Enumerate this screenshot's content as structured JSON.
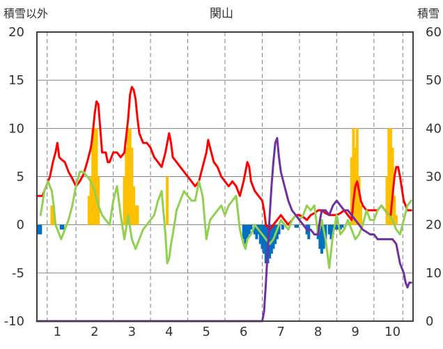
{
  "chart_data": {
    "type": "line",
    "title": "関山",
    "left_axis_label": "積雪以外",
    "right_axis_label": "積雪",
    "ylim_left": [
      -10,
      20
    ],
    "yticks_left": [
      20,
      15,
      10,
      5,
      0,
      -5,
      -10
    ],
    "ylim_right": [
      0,
      60
    ],
    "yticks_right": [
      60,
      50,
      40,
      30,
      20,
      10,
      0
    ],
    "xlim": [
      0.45,
      10.55
    ],
    "xticks": [
      1,
      2,
      3,
      4,
      5,
      6,
      7,
      8,
      9,
      10
    ],
    "grid": true,
    "colors": {
      "red_line": "#ff0000",
      "green_line": "#92d050",
      "purple_line": "#7030a0",
      "orange_bar": "#ffc000",
      "blue_bar": "#0070c0",
      "grid": "#808080",
      "axis": "#404040"
    },
    "series": [
      {
        "type": "line",
        "axis": "left",
        "color": "#ff0000",
        "x": [
          0.45,
          0.6,
          0.75,
          0.8,
          0.88,
          0.95,
          1.0,
          1.05,
          1.1,
          1.2,
          1.3,
          1.4,
          1.5,
          1.6,
          1.7,
          1.8,
          1.9,
          1.95,
          2.0,
          2.05,
          2.1,
          2.15,
          2.2,
          2.3,
          2.35,
          2.4,
          2.5,
          2.6,
          2.7,
          2.8,
          2.9,
          2.95,
          3.0,
          3.05,
          3.1,
          3.15,
          3.2,
          3.3,
          3.4,
          3.5,
          3.6,
          3.7,
          3.8,
          3.9,
          3.95,
          4.0,
          4.05,
          4.1,
          4.2,
          4.3,
          4.4,
          4.5,
          4.6,
          4.7,
          4.8,
          4.9,
          5.0,
          5.05,
          5.1,
          5.2,
          5.3,
          5.4,
          5.5,
          5.6,
          5.7,
          5.8,
          5.85,
          5.9,
          6.0,
          6.05,
          6.1,
          6.15,
          6.2,
          6.3,
          6.4,
          6.5,
          6.55,
          6.6,
          6.7,
          6.8,
          6.9,
          7.0,
          7.1,
          7.2,
          7.3,
          7.4,
          7.5,
          7.6,
          7.7,
          7.8,
          7.9,
          8.0,
          8.1,
          8.2,
          8.3,
          8.4,
          8.5,
          8.6,
          8.7,
          8.8,
          8.9,
          8.95,
          9.0,
          9.05,
          9.1,
          9.15,
          9.2,
          9.3,
          9.4,
          9.5,
          9.6,
          9.7,
          9.8,
          9.9,
          9.95,
          10.0,
          10.05,
          10.1,
          10.15,
          10.2,
          10.3,
          10.4,
          10.5
        ],
        "y": [
          3.0,
          3.0,
          4.5,
          5.0,
          6.5,
          7.5,
          8.5,
          7.0,
          6.8,
          6.5,
          5.5,
          4.8,
          4.0,
          4.5,
          5.2,
          6.5,
          8.0,
          9.5,
          11.5,
          12.8,
          12.5,
          10.0,
          7.5,
          7.5,
          6.5,
          6.5,
          7.5,
          7.5,
          7.0,
          7.5,
          11.0,
          13.5,
          14.3,
          14.0,
          13.0,
          11.0,
          9.5,
          8.5,
          8.5,
          8.0,
          7.0,
          6.5,
          6.0,
          7.5,
          8.5,
          9.5,
          8.5,
          7.0,
          6.5,
          6.0,
          5.5,
          5.0,
          4.5,
          4.0,
          4.5,
          6.0,
          7.5,
          8.8,
          8.0,
          6.5,
          6.0,
          5.0,
          4.5,
          4.0,
          4.5,
          4.0,
          3.5,
          3.0,
          4.5,
          5.5,
          6.5,
          6.0,
          4.5,
          3.5,
          3.0,
          2.5,
          1.5,
          0.0,
          -0.5,
          0.0,
          0.5,
          1.0,
          0.5,
          0.0,
          0.5,
          1.0,
          1.0,
          0.8,
          0.5,
          1.0,
          1.2,
          1.5,
          1.5,
          1.2,
          1.0,
          1.0,
          1.0,
          1.2,
          1.5,
          1.0,
          0.5,
          2.5,
          4.0,
          4.5,
          3.5,
          2.5,
          2.0,
          1.5,
          1.5,
          1.5,
          1.5,
          2.0,
          1.5,
          1.0,
          1.0,
          3.0,
          5.0,
          6.0,
          6.0,
          5.0,
          2.5,
          1.5,
          1.5
        ]
      },
      {
        "type": "line",
        "axis": "left",
        "color": "#92d050",
        "x": [
          0.55,
          0.65,
          0.75,
          0.85,
          0.9,
          0.95,
          1.0,
          1.05,
          1.1,
          1.15,
          1.2,
          1.3,
          1.4,
          1.5,
          1.6,
          1.7,
          1.8,
          1.9,
          2.0,
          2.1,
          2.2,
          2.3,
          2.4,
          2.5,
          2.6,
          2.7,
          2.8,
          2.9,
          3.0,
          3.1,
          3.2,
          3.3,
          3.4,
          3.5,
          3.6,
          3.7,
          3.8,
          3.9,
          3.95,
          4.0,
          4.05,
          4.1,
          4.2,
          4.3,
          4.4,
          4.5,
          4.6,
          4.7,
          4.8,
          4.9,
          5.0,
          5.1,
          5.2,
          5.3,
          5.4,
          5.5,
          5.6,
          5.7,
          5.8,
          5.9,
          6.0,
          6.05,
          6.1,
          6.2,
          6.3,
          6.4,
          6.5,
          6.6,
          6.7,
          6.8,
          6.9,
          7.0,
          7.1,
          7.2,
          7.3,
          7.4,
          7.5,
          7.6,
          7.7,
          7.8,
          7.9,
          8.0,
          8.1,
          8.2,
          8.3,
          8.4,
          8.5,
          8.6,
          8.7,
          8.8,
          8.9,
          9.0,
          9.1,
          9.2,
          9.3,
          9.4,
          9.5,
          9.6,
          9.7,
          9.8,
          9.9,
          10.0,
          10.1,
          10.2,
          10.3,
          10.4,
          10.5
        ],
        "y": [
          1.0,
          3.5,
          4.5,
          3.5,
          2.0,
          0.0,
          -0.5,
          -1.0,
          -1.5,
          -1.0,
          -0.5,
          0.5,
          2.0,
          4.0,
          5.5,
          5.5,
          5.0,
          4.5,
          3.5,
          2.0,
          1.0,
          0.5,
          0.0,
          2.5,
          4.0,
          1.0,
          -1.5,
          1.0,
          -1.5,
          -2.5,
          -1.5,
          -0.5,
          0.0,
          0.5,
          1.0,
          2.5,
          3.5,
          -1.0,
          -4.0,
          -3.5,
          -2.0,
          -1.0,
          1.5,
          2.5,
          3.5,
          3.0,
          2.5,
          2.5,
          4.5,
          3.0,
          -1.5,
          0.5,
          1.0,
          1.5,
          2.0,
          1.0,
          2.0,
          2.5,
          3.0,
          -0.5,
          -2.0,
          -2.5,
          -1.5,
          -1.0,
          0.0,
          -0.5,
          -1.0,
          -1.5,
          -2.0,
          -1.5,
          -0.5,
          0.5,
          0.0,
          -0.5,
          0.5,
          1.0,
          0.5,
          1.0,
          2.0,
          1.5,
          2.0,
          -1.0,
          0.5,
          -1.5,
          -4.5,
          -1.0,
          1.0,
          -1.0,
          -0.5,
          0.5,
          -0.5,
          -1.5,
          -1.0,
          0.0,
          1.5,
          0.5,
          0.5,
          1.5,
          2.0,
          1.5,
          1.0,
          0.5,
          -0.5,
          -1.0,
          0.5,
          2.0,
          2.5
        ]
      },
      {
        "type": "line",
        "axis": "right",
        "color": "#7030a0",
        "x": [
          0.45,
          1.0,
          2.0,
          3.0,
          4.0,
          5.0,
          6.0,
          6.5,
          6.55,
          6.6,
          6.65,
          6.7,
          6.75,
          6.8,
          6.85,
          6.9,
          6.95,
          7.0,
          7.1,
          7.2,
          7.3,
          7.4,
          7.5,
          7.6,
          7.7,
          7.8,
          7.9,
          8.0,
          8.05,
          8.1,
          8.2,
          8.3,
          8.4,
          8.5,
          8.6,
          8.7,
          8.8,
          8.9,
          9.0,
          9.1,
          9.2,
          9.3,
          9.4,
          9.5,
          9.6,
          9.7,
          9.8,
          9.9,
          10.0,
          10.1,
          10.2,
          10.3,
          10.35,
          10.4,
          10.45,
          10.5
        ],
        "y": [
          0,
          0,
          0,
          0,
          0,
          0,
          0,
          0,
          2,
          8,
          15,
          22,
          28,
          33,
          37,
          38,
          34,
          31,
          28,
          25,
          23,
          22,
          21,
          20,
          19,
          19,
          18,
          18,
          21,
          23,
          23,
          22,
          24,
          25,
          24,
          23,
          23,
          22,
          21,
          20,
          19,
          18.5,
          18,
          18,
          17,
          17,
          17,
          17,
          17,
          16,
          12,
          10,
          8,
          7,
          8,
          8
        ]
      },
      {
        "type": "bar",
        "axis": "left",
        "color": "#ffc000",
        "x": [
          0.85,
          0.9,
          1.85,
          1.9,
          1.95,
          2.0,
          2.05,
          2.1,
          2.8,
          2.85,
          2.9,
          2.95,
          3.0,
          3.05,
          3.1,
          3.15,
          3.95,
          8.9,
          8.95,
          9.0,
          9.05,
          9.1,
          9.15,
          9.85,
          9.9,
          9.95,
          10.0,
          10.05,
          10.1
        ],
        "y": [
          2.0,
          2.0,
          3.0,
          5.0,
          10.0,
          10.0,
          10.0,
          5.0,
          5.0,
          8.0,
          10.0,
          10.0,
          8.0,
          4.0,
          2.0,
          2.0,
          5.0,
          7.0,
          10.0,
          8.0,
          10.0,
          5.0,
          2.0,
          5.0,
          10.0,
          10.0,
          8.0,
          3.0,
          1.0
        ]
      },
      {
        "type": "bar",
        "axis": "left",
        "color": "#0070c0",
        "x": [
          0.5,
          0.55,
          1.1,
          1.15,
          6.0,
          6.05,
          6.1,
          6.15,
          6.2,
          6.3,
          6.35,
          6.4,
          6.45,
          6.5,
          6.55,
          6.6,
          6.65,
          6.7,
          6.75,
          6.8,
          6.85,
          6.9,
          6.95,
          7.05,
          7.4,
          7.45,
          7.7,
          7.75,
          8.0,
          8.05,
          8.1,
          8.15,
          8.2,
          8.3,
          8.35,
          8.4,
          8.45,
          8.5,
          8.55,
          8.6,
          8.65
        ],
        "y": [
          -1.0,
          -1.0,
          -0.5,
          -0.5,
          -1.5,
          -2.0,
          -1.5,
          -1.0,
          -0.5,
          -1.0,
          -1.5,
          -1.0,
          -2.0,
          -2.5,
          -3.0,
          -4.0,
          -4.0,
          -3.5,
          -3.0,
          -2.5,
          -2.0,
          -1.5,
          -1.0,
          -0.5,
          -0.3,
          -0.3,
          -1.0,
          -1.5,
          -1.5,
          -2.5,
          -3.0,
          -2.5,
          -1.5,
          -1.0,
          -1.5,
          -1.0,
          -0.5,
          -0.5,
          -0.5,
          -0.5,
          -0.3
        ]
      }
    ]
  }
}
